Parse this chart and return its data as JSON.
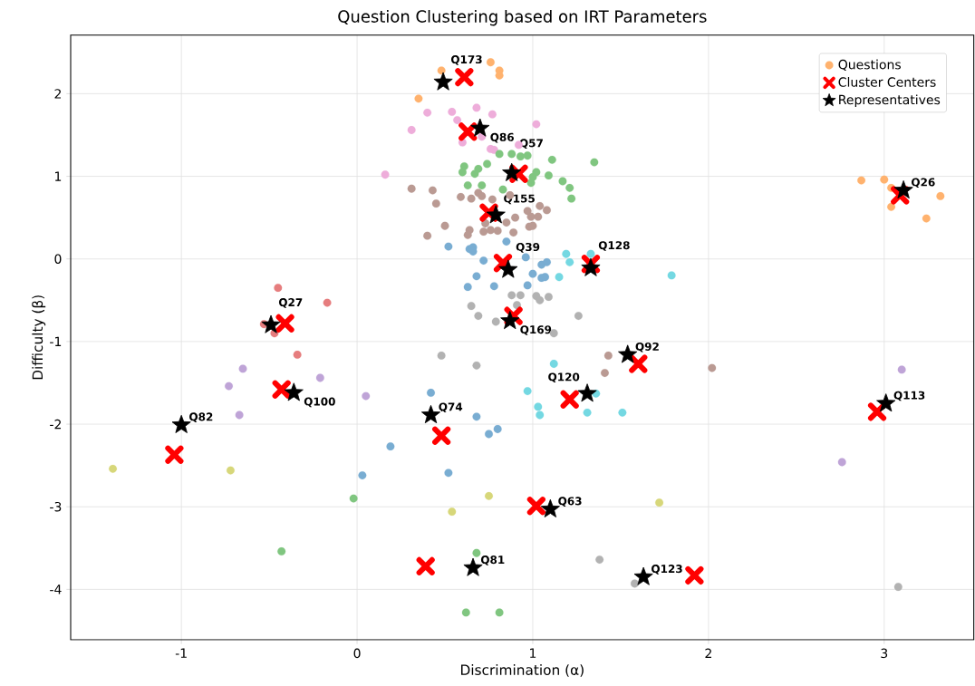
{
  "chart_data": {
    "type": "scatter",
    "title": "Question Clustering based on IRT Parameters",
    "xlabel": "Discrimination (α)",
    "ylabel": "Difficulty (β)",
    "xlim": [
      -1.63,
      3.51
    ],
    "ylim": [
      -4.61,
      2.71
    ],
    "xticks": [
      -1,
      0,
      1,
      2,
      3
    ],
    "yticks": [
      -4,
      -3,
      -2,
      -1,
      0,
      1,
      2
    ],
    "grid": true,
    "legend": "top right",
    "marker": "circle",
    "series": [
      {
        "name": "Questions",
        "color": "#ffb26e",
        "x": [
          0.48,
          0.76,
          0.81,
          0.81,
          0.35,
          2.87,
          3.0,
          3.04,
          3.32,
          3.04,
          3.24
        ],
        "values": [
          2.28,
          2.38,
          2.28,
          2.22,
          1.94,
          0.95,
          0.96,
          0.86,
          0.76,
          0.63,
          0.49
        ]
      },
      {
        "color": "#eeadda",
        "x": [
          0.4,
          0.54,
          0.68,
          0.77,
          1.02,
          0.31,
          0.57,
          0.92,
          0.76,
          0.78,
          0.16,
          0.6,
          0.71
        ],
        "values": [
          1.77,
          1.78,
          1.83,
          1.75,
          1.63,
          1.56,
          1.68,
          1.38,
          1.33,
          1.32,
          1.02,
          1.41,
          1.48
        ]
      },
      {
        "color": "#80c680",
        "x": [
          0.81,
          0.88,
          0.93,
          0.97,
          1.11,
          1.35,
          0.61,
          0.69,
          0.74,
          0.6,
          0.67,
          1.02,
          1.09,
          1.0,
          0.99,
          1.17,
          1.21,
          1.22,
          0.63,
          0.71,
          0.83,
          -0.02,
          -0.43,
          0.68,
          0.62,
          0.81
        ],
        "values": [
          1.27,
          1.27,
          1.24,
          1.25,
          1.2,
          1.17,
          1.12,
          1.09,
          1.15,
          1.05,
          1.03,
          1.05,
          1.01,
          0.99,
          0.92,
          0.94,
          0.86,
          0.73,
          0.89,
          0.89,
          0.84,
          -2.9,
          -3.54,
          -3.56,
          -4.28,
          -4.28
        ]
      },
      {
        "color": "#ba9a93",
        "x": [
          0.31,
          0.43,
          0.45,
          0.59,
          0.65,
          0.69,
          0.71,
          0.77,
          0.87,
          1.04,
          1.08,
          0.97,
          0.9,
          0.99,
          1.03,
          0.98,
          1.0,
          0.5,
          0.4,
          0.64,
          0.63,
          0.72,
          0.76,
          0.8,
          0.89,
          0.85,
          0.73,
          1.43,
          1.41,
          2.02
        ],
        "values": [
          0.85,
          0.83,
          0.67,
          0.75,
          0.73,
          0.8,
          0.76,
          0.72,
          0.77,
          0.64,
          0.59,
          0.58,
          0.5,
          0.51,
          0.51,
          0.39,
          0.4,
          0.4,
          0.28,
          0.35,
          0.29,
          0.33,
          0.35,
          0.34,
          0.32,
          0.44,
          0.43,
          -1.17,
          -1.38,
          -1.32
        ]
      },
      {
        "color": "#79add2",
        "x": [
          0.52,
          0.64,
          0.66,
          0.66,
          0.85,
          0.72,
          0.96,
          1.05,
          1.08,
          1.0,
          1.05,
          1.07,
          0.68,
          0.63,
          0.78,
          0.97,
          0.42,
          0.68,
          0.75,
          0.8,
          0.19,
          0.03,
          0.52
        ],
        "values": [
          0.15,
          0.12,
          0.14,
          0.09,
          0.21,
          -0.02,
          0.02,
          -0.07,
          -0.04,
          -0.18,
          -0.23,
          -0.22,
          -0.21,
          -0.34,
          -0.33,
          -0.32,
          -1.62,
          -1.91,
          -2.12,
          -2.06,
          -2.27,
          -2.62,
          -2.59
        ]
      },
      {
        "color": "#74d8e2",
        "x": [
          1.19,
          1.21,
          1.15,
          1.33,
          1.79,
          1.12,
          0.97,
          1.03,
          1.04,
          1.31,
          1.51,
          1.36
        ],
        "values": [
          0.06,
          -0.04,
          -0.22,
          0.06,
          -0.2,
          -1.27,
          -1.6,
          -1.79,
          -1.89,
          -1.86,
          -1.86,
          -1.63
        ]
      },
      {
        "color": "#b2b2b2",
        "x": [
          0.88,
          0.93,
          1.02,
          1.09,
          1.04,
          0.65,
          0.69,
          0.79,
          0.91,
          1.26,
          1.12,
          0.48,
          0.68,
          1.38,
          1.58,
          3.08
        ],
        "values": [
          -0.44,
          -0.44,
          -0.45,
          -0.46,
          -0.5,
          -0.57,
          -0.69,
          -0.76,
          -0.56,
          -0.69,
          -0.9,
          -1.17,
          -1.29,
          -3.64,
          -3.93,
          -3.97
        ]
      },
      {
        "color": "#e67d7e",
        "x": [
          -0.45,
          -0.17,
          -0.53,
          -0.47,
          -0.34
        ],
        "values": [
          -0.35,
          -0.53,
          -0.79,
          -0.9,
          -1.16
        ]
      },
      {
        "color": "#bfa4d7",
        "x": [
          -0.65,
          -0.73,
          -0.67,
          -0.21,
          0.05,
          3.1,
          2.76
        ],
        "values": [
          -1.33,
          -1.54,
          -1.89,
          -1.44,
          -1.66,
          -1.34,
          -2.46
        ]
      },
      {
        "color": "#d7d77a",
        "x": [
          -1.39,
          -0.72,
          0.75,
          0.54,
          1.72
        ],
        "values": [
          -2.54,
          -2.56,
          -2.87,
          -3.06,
          -2.95
        ]
      },
      {
        "name": "Cluster Centers",
        "color": "#ff0000",
        "marker": "cross",
        "x": [
          0.61,
          0.63,
          0.92,
          0.75,
          0.83,
          1.33,
          0.89,
          -0.41,
          -0.43,
          -1.04,
          0.48,
          1.21,
          1.6,
          1.02,
          0.39,
          1.92,
          3.09,
          2.96
        ],
        "values": [
          2.2,
          1.54,
          1.03,
          0.56,
          -0.05,
          -0.06,
          -0.69,
          -0.78,
          -1.58,
          -2.37,
          -2.14,
          -1.7,
          -1.27,
          -2.99,
          -3.72,
          -3.83,
          0.77,
          -1.85
        ]
      },
      {
        "name": "Representatives",
        "color": "#000000",
        "marker": "star",
        "x": [
          0.49,
          0.7,
          0.88,
          0.79,
          0.86,
          1.33,
          0.87,
          -0.49,
          -0.36,
          -1.0,
          0.42,
          1.31,
          1.54,
          1.1,
          0.66,
          1.63,
          3.11,
          3.01
        ],
        "values": [
          2.14,
          1.58,
          1.04,
          0.53,
          -0.13,
          -0.11,
          -0.75,
          -0.8,
          -1.62,
          -2.01,
          -1.89,
          -1.63,
          -1.16,
          -3.03,
          -3.74,
          -3.85,
          0.83,
          -1.75
        ]
      }
    ],
    "annotations": [
      {
        "text": "Q173",
        "x": 0.49,
        "y": 2.14
      },
      {
        "text": "Q86",
        "x": 0.7,
        "y": 1.58
      },
      {
        "text": "Q57",
        "x": 0.88,
        "y": 1.04
      },
      {
        "text": "Q155",
        "x": 0.79,
        "y": 0.53
      },
      {
        "text": "Q39",
        "x": 0.86,
        "y": -0.13
      },
      {
        "text": "Q128",
        "x": 1.33,
        "y": -0.11
      },
      {
        "text": "Q169",
        "x": 0.87,
        "y": -0.75
      },
      {
        "text": "Q27",
        "x": -0.49,
        "y": -0.8
      },
      {
        "text": "Q100",
        "x": -0.36,
        "y": -1.62
      },
      {
        "text": "Q82",
        "x": -1.0,
        "y": -2.01
      },
      {
        "text": "Q74",
        "x": 0.42,
        "y": -1.89
      },
      {
        "text": "Q120",
        "x": 1.31,
        "y": -1.63
      },
      {
        "text": "Q92",
        "x": 1.54,
        "y": -1.16
      },
      {
        "text": "Q63",
        "x": 1.1,
        "y": -3.03
      },
      {
        "text": "Q81",
        "x": 0.66,
        "y": -3.74
      },
      {
        "text": "Q123",
        "x": 1.63,
        "y": -3.85
      },
      {
        "text": "Q26",
        "x": 3.11,
        "y": 0.83
      },
      {
        "text": "Q113",
        "x": 3.01,
        "y": -1.75
      }
    ]
  }
}
